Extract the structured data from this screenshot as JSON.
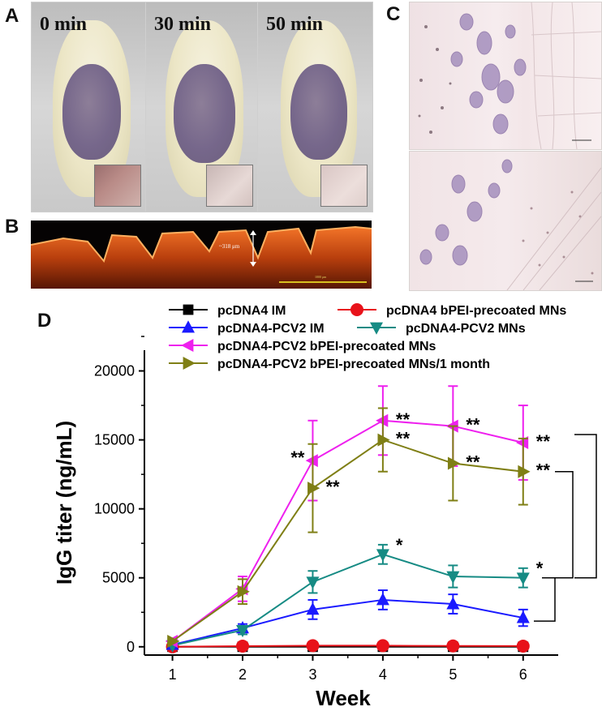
{
  "panels": {
    "a_label": "A",
    "b_label": "B",
    "c_label": "C",
    "d_label": "D"
  },
  "photos": {
    "times": [
      "0 min",
      "30 min",
      "50 min"
    ]
  },
  "fluorescence": {
    "depth_label": "~318 μm",
    "scale_label": "1000 μm"
  },
  "chart_data": {
    "type": "line",
    "title": "",
    "xlabel": "Week",
    "ylabel": "IgG titer (ng/mL)",
    "xlim": [
      0.6,
      6.5
    ],
    "ylim": [
      -600,
      21500
    ],
    "x_ticks": [
      1,
      2,
      3,
      4,
      5,
      6
    ],
    "y_ticks": [
      0,
      5000,
      10000,
      15000,
      20000
    ],
    "x": [
      1,
      2,
      3,
      4,
      5,
      6
    ],
    "legend_position": "top",
    "series": [
      {
        "name": "pcDNA4 IM",
        "color": "#000000",
        "marker": "square",
        "values": [
          0,
          0,
          0,
          0,
          0,
          0
        ],
        "error": [
          0,
          0,
          0,
          0,
          0,
          0
        ],
        "annotations": [
          "",
          "",
          "",
          "",
          "",
          ""
        ]
      },
      {
        "name": "pcDNA4 bPEI-precoated MNs",
        "color": "#e8121a",
        "marker": "circle",
        "values": [
          0,
          50,
          80,
          80,
          60,
          50
        ],
        "error": [
          0,
          0,
          0,
          0,
          0,
          0
        ],
        "annotations": [
          "",
          "",
          "",
          "",
          "",
          ""
        ]
      },
      {
        "name": "pcDNA4-PCV2 IM",
        "color": "#1a1aff",
        "marker": "triangle-up",
        "values": [
          150,
          1350,
          2700,
          3400,
          3100,
          2100
        ],
        "error": [
          0,
          300,
          700,
          700,
          700,
          600
        ],
        "annotations": [
          "",
          "",
          "",
          "",
          "",
          ""
        ]
      },
      {
        "name": "pcDNA4-PCV2 MNs",
        "color": "#168b84",
        "marker": "triangle-down",
        "values": [
          100,
          1200,
          4700,
          6700,
          5100,
          5000
        ],
        "error": [
          0,
          300,
          800,
          700,
          800,
          700
        ],
        "annotations": [
          "",
          "",
          "",
          "*",
          "",
          "*"
        ]
      },
      {
        "name": "pcDNA4-PCV2 bPEI-precoated MNs",
        "color": "#ee20ee",
        "marker": "triangle-left",
        "values": [
          400,
          4200,
          13500,
          16400,
          16000,
          14800
        ],
        "error": [
          0,
          900,
          2900,
          2500,
          2900,
          2700
        ],
        "annotations": [
          "",
          "",
          "**",
          "**",
          "**",
          "**"
        ]
      },
      {
        "name": "pcDNA4-PCV2 bPEI-precoated MNs/1 month",
        "color": "#7f7f15",
        "marker": "triangle-right",
        "values": [
          400,
          4000,
          11500,
          15000,
          13300,
          12700
        ],
        "error": [
          0,
          900,
          3200,
          2300,
          2700,
          2400
        ],
        "annotations": [
          "",
          "",
          "**",
          "**",
          "**",
          "**"
        ]
      }
    ]
  }
}
